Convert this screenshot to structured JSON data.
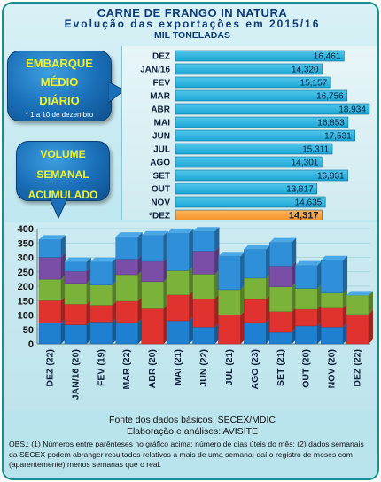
{
  "header": {
    "title": "CARNE DE FRANGO IN NATURA",
    "subtitle": "Evolução das exportações em 2015/16",
    "unit": "MIL TONELADAS"
  },
  "bubbles": {
    "embarque_line1": "EMBARQUE",
    "embarque_line2": "MÉDIO",
    "embarque_line3": "DIÁRIO",
    "embarque_note": "* 1 a 10 de dezembro",
    "volume_line1": "VOLUME",
    "volume_line2": "SEMANAL",
    "volume_line3": "ACUMULADO"
  },
  "chart_data": [
    {
      "type": "bar",
      "orientation": "horizontal",
      "categories": [
        "DEZ",
        "JAN/16",
        "FEV",
        "MAR",
        "ABR",
        "MAI",
        "JUN",
        "JUL",
        "AGO",
        "SET",
        "OUT",
        "NOV",
        "*DEZ"
      ],
      "values": [
        16461,
        14320,
        15157,
        16756,
        18934,
        16853,
        17531,
        15311,
        14301,
        16831,
        13817,
        14635,
        14317
      ],
      "labels": [
        "16,461",
        "14,320",
        "15,157",
        "16,756",
        "18,934",
        "16,853",
        "17,531",
        "15,311",
        "14,301",
        "16,831",
        "13,817",
        "14,635",
        "14,317"
      ],
      "highlight_index": 12,
      "colors": {
        "bar": "#1aa6d6",
        "highlight": "#f5922a"
      }
    },
    {
      "type": "bar",
      "stacked": true,
      "categories": [
        "DEZ (22)",
        "JAN/16 (20)",
        "FEV (19)",
        "MAR (22)",
        "ABR (20)",
        "MAI (21)",
        "JUN (22)",
        "JUL (21)",
        "AGO (23)",
        "SET (21)",
        "OUT (20)",
        "NOV (20)",
        "DEZ (22)"
      ],
      "series": [
        {
          "color": "#1f7fd0",
          "values": [
            72,
            66,
            76,
            74,
            0,
            80,
            58,
            0,
            74,
            40,
            62,
            58,
            0
          ]
        },
        {
          "color": "#e0322f",
          "values": [
            78,
            72,
            58,
            74,
            122,
            90,
            98,
            100,
            80,
            72,
            58,
            66,
            102
          ]
        },
        {
          "color": "#7ab23a",
          "values": [
            74,
            72,
            70,
            92,
            94,
            84,
            86,
            88,
            74,
            86,
            72,
            52,
            66
          ]
        },
        {
          "color": "#7a4ea6",
          "values": [
            76,
            42,
            0,
            54,
            70,
            0,
            80,
            0,
            0,
            72,
            0,
            0,
            0
          ]
        },
        {
          "color": "#2f8fd8",
          "values": [
            62,
            32,
            80,
            78,
            90,
            130,
            68,
            116,
            100,
            82,
            80,
            114,
            0
          ]
        }
      ],
      "totals": [
        362,
        284,
        284,
        372,
        376,
        384,
        390,
        304,
        328,
        352,
        272,
        290,
        168
      ],
      "ylim": [
        0,
        400
      ],
      "yticks": [
        0,
        50,
        100,
        150,
        200,
        250,
        300,
        350,
        400
      ]
    }
  ],
  "footer": {
    "source": "Fonte dos dados básicos: SECEX/MDIC",
    "elaboration": "Elaboração e análises: AVISITE",
    "obs": "OBS.: (1) Números entre parênteses no gráfico acima: número de dias úteis do mês; (2) dados semanais da SECEX podem abranger resultados relativos a mais de uma semana; daí o registro de meses com (aparentemente) menos semanas que o real."
  }
}
